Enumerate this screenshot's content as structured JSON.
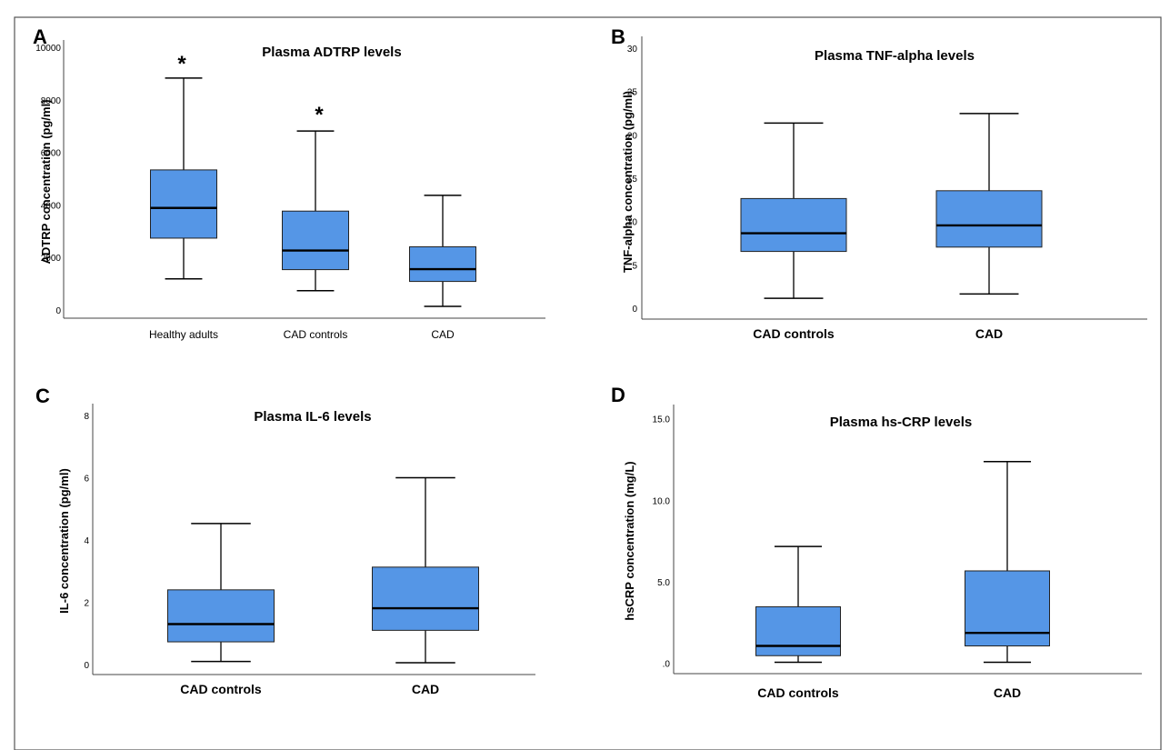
{
  "figure_border_color": "#555555",
  "box_fill": "#5596e6",
  "chart_data": [
    {
      "type": "box",
      "panel_label": "A",
      "title": "Plasma ADTRP levels",
      "xlabel": "",
      "ylabel": "ADTRP concentration (pg/ml)",
      "ylim": [
        -300,
        10300
      ],
      "yticks": [
        0,
        2000,
        4000,
        6000,
        8000,
        10000
      ],
      "ytick_labels": [
        "0",
        "2000",
        "4000",
        "6000",
        "8000",
        "10000"
      ],
      "categories": [
        "Healthy adults",
        "CAD controls",
        "CAD"
      ],
      "boxes": [
        {
          "whisker_low": 1200,
          "q1": 2750,
          "median": 3900,
          "q3": 5350,
          "whisker_high": 8850
        },
        {
          "whisker_low": 750,
          "q1": 1550,
          "median": 2280,
          "q3": 3780,
          "whisker_high": 6830
        },
        {
          "whisker_low": 150,
          "q1": 1100,
          "median": 1570,
          "q3": 2420,
          "whisker_high": 4380
        }
      ],
      "annotations": [
        "*",
        "*",
        ""
      ]
    },
    {
      "type": "box",
      "panel_label": "B",
      "title": "Plasma TNF-alpha levels",
      "xlabel": "",
      "ylabel": "TNF-alpha concentration (pg/ml)",
      "ylim": [
        -1.2,
        31.4
      ],
      "yticks": [
        0,
        5,
        10,
        15,
        20,
        25,
        30
      ],
      "ytick_labels": [
        "0",
        "5",
        "10",
        "15",
        "20",
        "25",
        "30"
      ],
      "categories": [
        "CAD controls",
        "CAD"
      ],
      "boxes": [
        {
          "whisker_low": 1.2,
          "q1": 6.6,
          "median": 8.7,
          "q3": 12.7,
          "whisker_high": 21.4
        },
        {
          "whisker_low": 1.7,
          "q1": 7.1,
          "median": 9.6,
          "q3": 13.6,
          "whisker_high": 22.5
        }
      ],
      "annotations": [
        "",
        ""
      ]
    },
    {
      "type": "box",
      "panel_label": "C",
      "title": "Plasma IL-6 levels",
      "xlabel": "",
      "ylabel": "IL-6 concentration (pg/ml)",
      "ylim": [
        -0.3,
        8.4
      ],
      "yticks": [
        0,
        2,
        4,
        6,
        8
      ],
      "ytick_labels": [
        "0",
        "2",
        "4",
        "6",
        "8"
      ],
      "categories": [
        "CAD controls",
        "CAD"
      ],
      "boxes": [
        {
          "whisker_low": 0.12,
          "q1": 0.75,
          "median": 1.32,
          "q3": 2.42,
          "whisker_high": 4.55
        },
        {
          "whisker_low": 0.08,
          "q1": 1.12,
          "median": 1.83,
          "q3": 3.15,
          "whisker_high": 6.02
        }
      ],
      "annotations": [
        "",
        ""
      ]
    },
    {
      "type": "box",
      "panel_label": "D",
      "title": "Plasma hs-CRP levels",
      "xlabel": "",
      "ylabel": "hsCRP concentration (mg/L)",
      "ylim": [
        -0.6,
        15.9
      ],
      "yticks": [
        0,
        5,
        10,
        15
      ],
      "ytick_labels": [
        ".0",
        "5.0",
        "10.0",
        "15.0"
      ],
      "categories": [
        "CAD controls",
        "CAD"
      ],
      "boxes": [
        {
          "whisker_low": 0.1,
          "q1": 0.5,
          "median": 1.1,
          "q3": 3.5,
          "whisker_high": 7.2
        },
        {
          "whisker_low": 0.1,
          "q1": 1.1,
          "median": 1.9,
          "q3": 5.7,
          "whisker_high": 12.4
        }
      ],
      "annotations": [
        "",
        ""
      ]
    }
  ]
}
